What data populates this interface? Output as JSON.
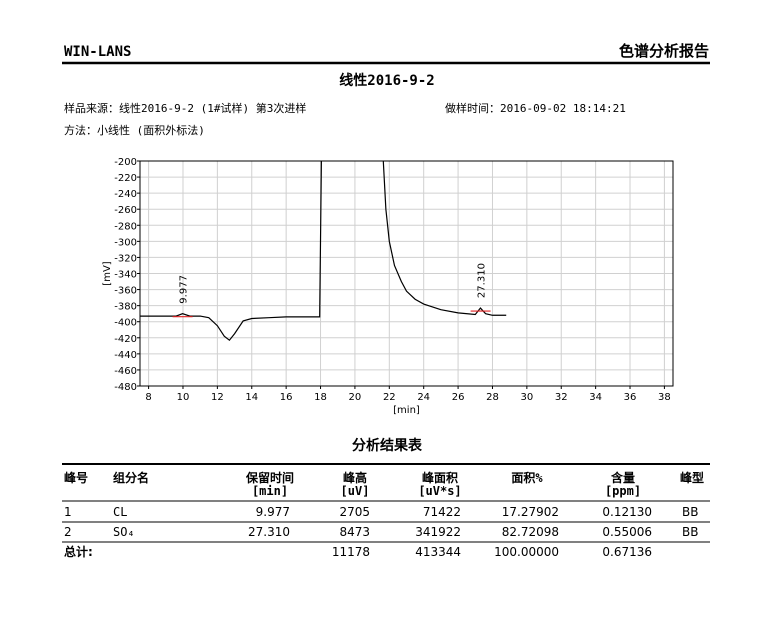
{
  "header": {
    "brand": "WIN-LANS",
    "report_title": "色谱分析报告"
  },
  "title": "线性2016-9-2",
  "sample": "样品来源：线性2016-9-2 (1#试样) 第3次进样",
  "time": "做样时间：2016-09-02 18:14:21",
  "method": "方法：小线性 (面积外标法)",
  "chart_data": {
    "type": "line",
    "xlabel": "[min]",
    "ylabel": "[mV]",
    "xlim": [
      7.5,
      38.5
    ],
    "ylim": [
      -480,
      -200
    ],
    "xticks": [
      8,
      10,
      12,
      14,
      16,
      18,
      20,
      22,
      24,
      26,
      28,
      30,
      32,
      34,
      36,
      38
    ],
    "yticks": [
      -480,
      -460,
      -440,
      -420,
      -400,
      -380,
      -360,
      -340,
      -320,
      -300,
      -280,
      -260,
      -240,
      -220,
      -200
    ],
    "grid": true,
    "series": [
      {
        "color": "#000000",
        "x": [
          7.5,
          8,
          9,
          9.6,
          9.977,
          10.4,
          11,
          11.5,
          12,
          12.4,
          12.7,
          13,
          13.5,
          14,
          15,
          16,
          17,
          17.95,
          18.05,
          20,
          21.65,
          21.8,
          22,
          22.3,
          22.7,
          23,
          23.5,
          24,
          25,
          26,
          27,
          27.3,
          27.6,
          28,
          28.8
        ],
        "values": [
          -393,
          -393,
          -393,
          -393,
          -390,
          -393,
          -393,
          -395,
          -405,
          -418,
          -423,
          -415,
          -399,
          -396,
          -395,
          -394,
          -394,
          -394,
          -200,
          null,
          -200,
          -260,
          -300,
          -330,
          -350,
          -362,
          -372,
          -378,
          -385,
          -389,
          -391,
          -383,
          -390,
          -392,
          -392
        ]
      }
    ],
    "annotations": [
      {
        "x": 9.977,
        "y": -390,
        "label": "9.977",
        "color": "#1f1fbf"
      },
      {
        "x": 27.31,
        "y": -383,
        "label": "27.310",
        "color": "#1f1fbf"
      }
    ]
  },
  "table": {
    "title": "分析结果表",
    "headers": [
      [
        "峰号"
      ],
      [
        "组分名"
      ],
      [
        "保留时间",
        "[min]"
      ],
      [
        "峰高",
        "[uV]"
      ],
      [
        "峰面积",
        "[uV*s]"
      ],
      [
        "面积%"
      ],
      [
        "含量",
        "[ppm]"
      ],
      [
        "峰型"
      ]
    ],
    "rows": [
      [
        "1",
        "CL",
        "9.977",
        "2705",
        "71422",
        "17.27902",
        "0.12130",
        "BB"
      ],
      [
        "2",
        "SO₄",
        "27.310",
        "8473",
        "341922",
        "82.72098",
        "0.55006",
        "BB"
      ]
    ],
    "total": {
      "label": "总计:",
      "cells": [
        "11178",
        "413344",
        "100.00000",
        "0.67136"
      ]
    }
  }
}
